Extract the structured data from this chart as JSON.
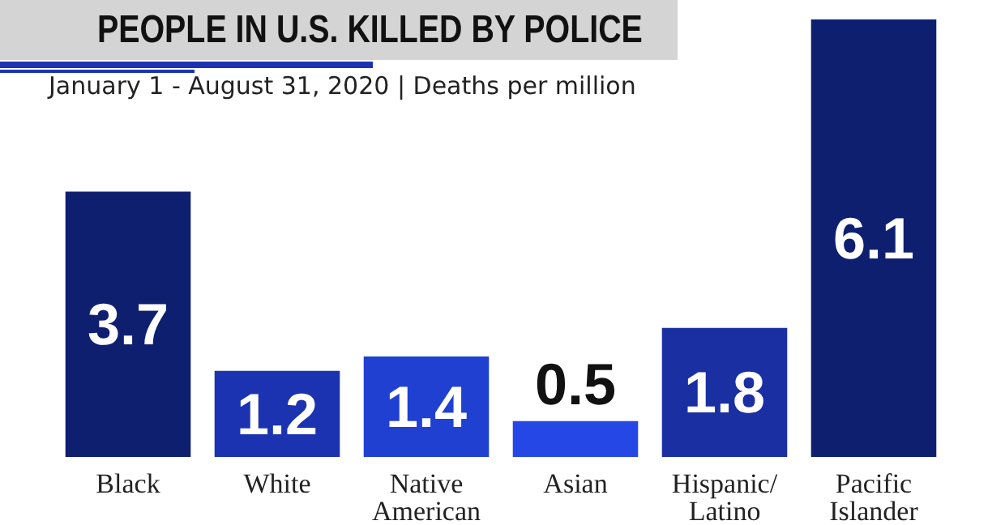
{
  "chart_data": {
    "type": "bar",
    "title": "PEOPLE IN U.S. KILLED BY POLICE",
    "subtitle": "January 1 - August 31, 2020 | Deaths per million",
    "categories": [
      "Black",
      "White",
      "Native\nAmerican",
      "Asian",
      "Hispanic/\nLatino",
      "Pacific\nIslander"
    ],
    "values": [
      3.7,
      1.2,
      1.4,
      0.5,
      1.8,
      6.1
    ],
    "colors": [
      "#0f1f70",
      "#1b33b0",
      "#2040d2",
      "#2447e6",
      "#1a2fa2",
      "#0f1f70"
    ],
    "data_labels": true,
    "grid": false
  }
}
